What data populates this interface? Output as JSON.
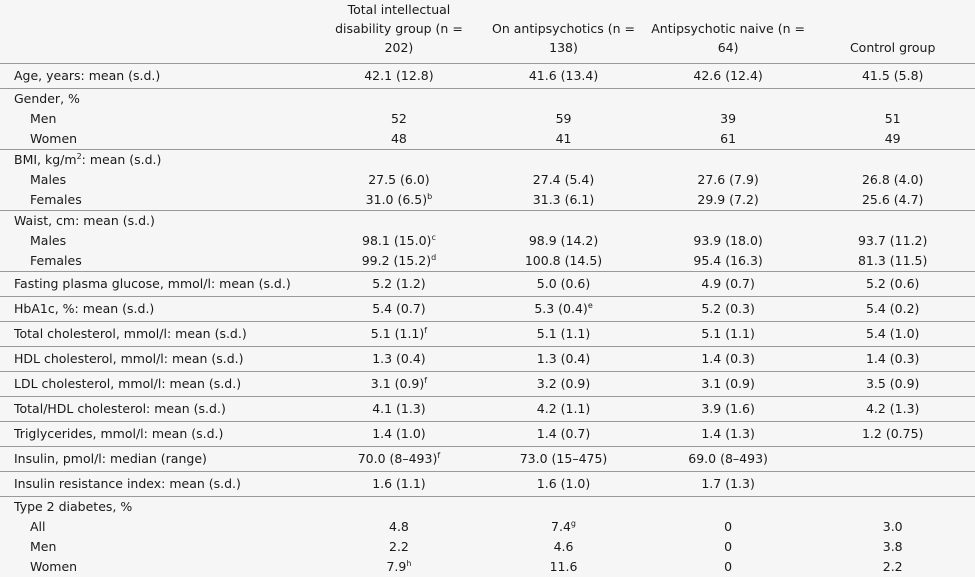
{
  "table": {
    "columns": [
      "Total intellectual disability group (n = 202)",
      "On antipsychotics (n = 138)",
      "Antipsychotic naive (n = 64)",
      "Control group"
    ],
    "sections": [
      {
        "label": {
          "text": "Age, years: mean (s.d.)"
        },
        "cells": [
          {
            "text": "42.1 (12.8)"
          },
          {
            "text": "41.6 (13.4)"
          },
          {
            "text": "42.6 (12.4)"
          },
          {
            "text": "41.5 (5.8)"
          }
        ]
      },
      {
        "label": {
          "text": "Gender, %"
        },
        "rows": [
          {
            "label": "Men",
            "cells": [
              {
                "text": "52"
              },
              {
                "text": "59"
              },
              {
                "text": "39"
              },
              {
                "text": "51"
              }
            ]
          },
          {
            "label": "Women",
            "cells": [
              {
                "text": "48"
              },
              {
                "text": "41"
              },
              {
                "text": "61"
              },
              {
                "text": "49"
              }
            ]
          }
        ]
      },
      {
        "label": {
          "text": "BMI, kg/m",
          "sup": "2",
          "rest": ": mean (s.d.)"
        },
        "rows": [
          {
            "label": "Males",
            "cells": [
              {
                "text": "27.5 (6.0)"
              },
              {
                "text": "27.4 (5.4)"
              },
              {
                "text": "27.6 (7.9)"
              },
              {
                "text": "26.8 (4.0)"
              }
            ]
          },
          {
            "label": "Females",
            "cells": [
              {
                "text": "31.0 (6.5)",
                "sup": "b"
              },
              {
                "text": "31.3 (6.1)"
              },
              {
                "text": "29.9 (7.2)"
              },
              {
                "text": "25.6 (4.7)"
              }
            ]
          }
        ]
      },
      {
        "label": {
          "text": "Waist, cm: mean (s.d.)"
        },
        "rows": [
          {
            "label": "Males",
            "cells": [
              {
                "text": "98.1 (15.0)",
                "sup": "c"
              },
              {
                "text": "98.9 (14.2)"
              },
              {
                "text": "93.9 (18.0)"
              },
              {
                "text": "93.7 (11.2)"
              }
            ]
          },
          {
            "label": "Females",
            "cells": [
              {
                "text": "99.2 (15.2)",
                "sup": "d"
              },
              {
                "text": "100.8 (14.5)"
              },
              {
                "text": "95.4 (16.3)"
              },
              {
                "text": "81.3 (11.5)"
              }
            ]
          }
        ]
      },
      {
        "label": {
          "text": "Fasting plasma glucose, mmol/l: mean (s.d.)"
        },
        "cells": [
          {
            "text": "5.2 (1.2)"
          },
          {
            "text": "5.0 (0.6)"
          },
          {
            "text": "4.9 (0.7)"
          },
          {
            "text": "5.2 (0.6)"
          }
        ]
      },
      {
        "label": {
          "text": "HbA1c, %: mean (s.d.)"
        },
        "cells": [
          {
            "text": "5.4 (0.7)"
          },
          {
            "text": "5.3 (0.4)",
            "sup": "e"
          },
          {
            "text": "5.2 (0.3)"
          },
          {
            "text": "5.4 (0.2)"
          }
        ]
      },
      {
        "label": {
          "text": "Total cholesterol, mmol/l: mean (s.d.)"
        },
        "cells": [
          {
            "text": "5.1 (1.1)",
            "sup": "f"
          },
          {
            "text": "5.1 (1.1)"
          },
          {
            "text": "5.1 (1.1)"
          },
          {
            "text": "5.4 (1.0)"
          }
        ]
      },
      {
        "label": {
          "text": "HDL cholesterol, mmol/l: mean (s.d.)"
        },
        "cells": [
          {
            "text": "1.3 (0.4)"
          },
          {
            "text": "1.3 (0.4)"
          },
          {
            "text": "1.4 (0.3)"
          },
          {
            "text": "1.4 (0.3)"
          }
        ]
      },
      {
        "label": {
          "text": "LDL cholesterol, mmol/l: mean (s.d.)"
        },
        "cells": [
          {
            "text": "3.1 (0.9)",
            "sup": "f"
          },
          {
            "text": "3.2 (0.9)"
          },
          {
            "text": "3.1 (0.9)"
          },
          {
            "text": "3.5 (0.9)"
          }
        ]
      },
      {
        "label": {
          "text": "Total/HDL cholesterol: mean (s.d.)"
        },
        "cells": [
          {
            "text": "4.1 (1.3)"
          },
          {
            "text": "4.2 (1.1)"
          },
          {
            "text": "3.9 (1.6)"
          },
          {
            "text": "4.2 (1.3)"
          }
        ]
      },
      {
        "label": {
          "text": "Triglycerides, mmol/l: mean (s.d.)"
        },
        "cells": [
          {
            "text": "1.4 (1.0)"
          },
          {
            "text": "1.4 (0.7)"
          },
          {
            "text": "1.4 (1.3)"
          },
          {
            "text": "1.2 (0.75)"
          }
        ]
      },
      {
        "label": {
          "text": "Insulin, pmol/l: median (range)"
        },
        "cells": [
          {
            "text": "70.0 (8–493)",
            "sup": "f"
          },
          {
            "text": "73.0 (15–475)"
          },
          {
            "text": "69.0 (8–493)"
          }
        ]
      },
      {
        "label": {
          "text": "Insulin resistance index: mean (s.d.)"
        },
        "cells": [
          {
            "text": "1.6 (1.1)"
          },
          {
            "text": "1.6 (1.0)"
          },
          {
            "text": "1.7 (1.3)"
          }
        ]
      },
      {
        "label": {
          "text": "Type 2 diabetes, %"
        },
        "rows": [
          {
            "label": "All",
            "cells": [
              {
                "text": "4.8"
              },
              {
                "text": "7.4",
                "sup": "g"
              },
              {
                "text": "0"
              },
              {
                "text": "3.0"
              }
            ]
          },
          {
            "label": "Men",
            "cells": [
              {
                "text": "2.2"
              },
              {
                "text": "4.6"
              },
              {
                "text": "0"
              },
              {
                "text": "3.8"
              }
            ]
          },
          {
            "label": "Women",
            "cells": [
              {
                "text": "7.9",
                "sup": "h"
              },
              {
                "text": "11.6"
              },
              {
                "text": "0"
              },
              {
                "text": "2.2"
              }
            ]
          }
        ]
      }
    ]
  }
}
